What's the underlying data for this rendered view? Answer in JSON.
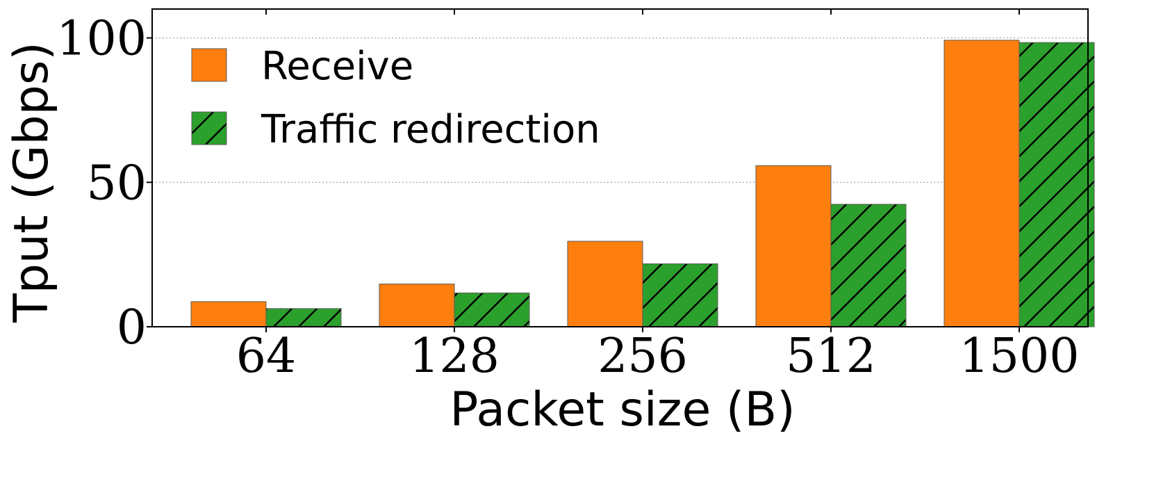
{
  "chart_data": {
    "type": "bar",
    "title": "",
    "xlabel": "Packet size (B)",
    "ylabel": "Tput (Gbps)",
    "categories": [
      "64",
      "128",
      "256",
      "512",
      "1500"
    ],
    "series": [
      {
        "name": "Receive",
        "values": [
          8.7,
          14.8,
          29.6,
          55.8,
          99.2
        ],
        "color": "#ff7f0e",
        "pattern": "solid"
      },
      {
        "name": "Traffic redirection",
        "values": [
          6.3,
          11.7,
          21.8,
          42.4,
          98.4
        ],
        "color": "#2ca02c",
        "pattern": "diagonal-hatch"
      }
    ],
    "ylim": [
      0,
      110
    ],
    "yticks": [
      0,
      50,
      100
    ],
    "grid": "y-dotted",
    "legend_position": "top-left"
  }
}
